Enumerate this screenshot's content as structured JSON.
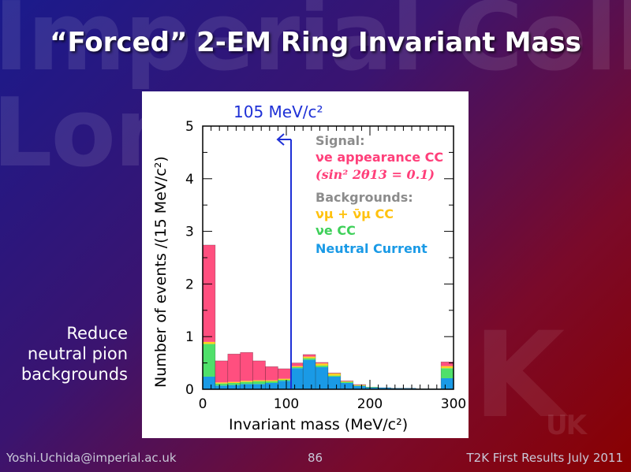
{
  "watermark": {
    "line1": "Imperial College",
    "line2": "London",
    "logo": "K",
    "logo_suffix": "UK"
  },
  "slide": {
    "title": "“Forced” 2-EM Ring Invariant Mass",
    "side_note": [
      "Reduce",
      "neutral pion",
      "backgrounds"
    ]
  },
  "footer": {
    "email": "Yoshi.Uchida@imperial.ac.uk",
    "page": "86",
    "event": "T2K First Results July 2011"
  },
  "colors": {
    "signal": "#ff4f7f",
    "numu": "#ffd21f",
    "nue_cc": "#4fe06a",
    "nc": "#1a9ae6",
    "cut": "#1e30d6",
    "signal_label": "#ff3f7a",
    "background_label": "#8c8c8c"
  },
  "chart_data": {
    "type": "bar",
    "stacked": true,
    "xlabel": "Invariant mass (MeV/c²)",
    "ylabel": "Number of events /(15 MeV/c²)",
    "xlim": [
      0,
      300
    ],
    "ylim": [
      0,
      5
    ],
    "xticks": [
      "0",
      "100",
      "200",
      "300"
    ],
    "yticks": [
      "0",
      "1",
      "2",
      "3",
      "4",
      "5"
    ],
    "bin_width": 15,
    "bin_edges": [
      0,
      15,
      30,
      45,
      60,
      75,
      90,
      105,
      120,
      135,
      150,
      165,
      180,
      195,
      210,
      225,
      240,
      255,
      270,
      285,
      300
    ],
    "series": [
      {
        "name": "Neutral Current",
        "key": "nc",
        "values": [
          0.24,
          0.07,
          0.08,
          0.1,
          0.1,
          0.12,
          0.16,
          0.4,
          0.56,
          0.42,
          0.24,
          0.12,
          0.06,
          0.03,
          0.03,
          0.02,
          0.02,
          0.01,
          0.01,
          0.21
        ]
      },
      {
        "name": "νe CC",
        "key": "nue_cc",
        "values": [
          0.62,
          0.04,
          0.04,
          0.04,
          0.05,
          0.03,
          0.02,
          0.02,
          0.03,
          0.03,
          0.02,
          0.02,
          0.01,
          0.01,
          0.0,
          0.0,
          0.0,
          0.0,
          0.0,
          0.19
        ]
      },
      {
        "name": "νμ + ν̄μ CC",
        "key": "numu",
        "values": [
          0.04,
          0.02,
          0.02,
          0.02,
          0.02,
          0.02,
          0.02,
          0.02,
          0.03,
          0.04,
          0.04,
          0.01,
          0.01,
          0.0,
          0.0,
          0.0,
          0.0,
          0.0,
          0.0,
          0.04
        ]
      },
      {
        "name": "νe appearance CC",
        "key": "signal",
        "values": [
          1.84,
          0.41,
          0.53,
          0.54,
          0.37,
          0.26,
          0.19,
          0.06,
          0.04,
          0.02,
          0.01,
          0.01,
          0.01,
          0.0,
          0.0,
          0.0,
          0.0,
          0.0,
          0.0,
          0.08
        ]
      }
    ],
    "cut": {
      "x": 105,
      "label": "105 MeV/c²"
    },
    "legend": {
      "position": "top-right",
      "signal_header": "Signal:",
      "signal_label": "νe appearance CC",
      "signal_param": "(sin² 2θ13 = 0.1)",
      "bkg_header": "Backgrounds:",
      "numu_label": "νμ + ν̄μ CC",
      "nue_cc_label": "νe CC",
      "nc_label": "Neutral Current"
    }
  }
}
